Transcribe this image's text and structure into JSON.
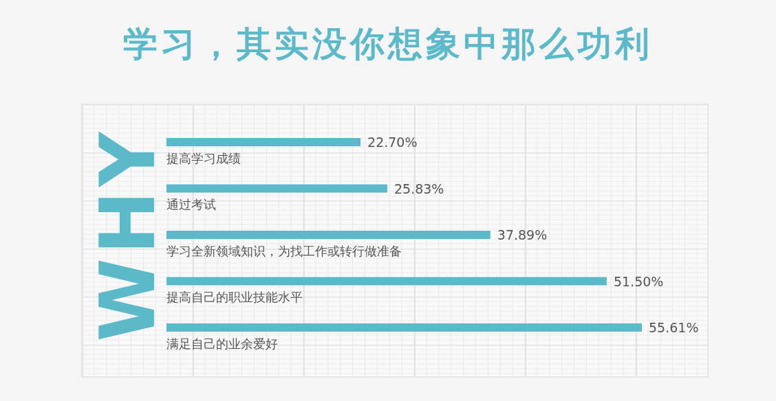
{
  "chart_data": {
    "type": "bar",
    "orientation": "horizontal",
    "title": "学习，其实没你想象中那么功利",
    "annotations": [
      "WHY"
    ],
    "categories": [
      "提高学习成绩",
      "通过考试",
      "学习全新领域知识，为找工作或转行做准备",
      "提高自己的职业技能水平",
      "满足自己的业余爱好"
    ],
    "values": [
      22.7,
      25.83,
      37.89,
      51.5,
      55.61
    ],
    "value_labels": [
      "22.70%",
      "25.83%",
      "37.89%",
      "51.50%",
      "55.61%"
    ],
    "color": "#5bb9ca",
    "tick_labels": "y"
  }
}
